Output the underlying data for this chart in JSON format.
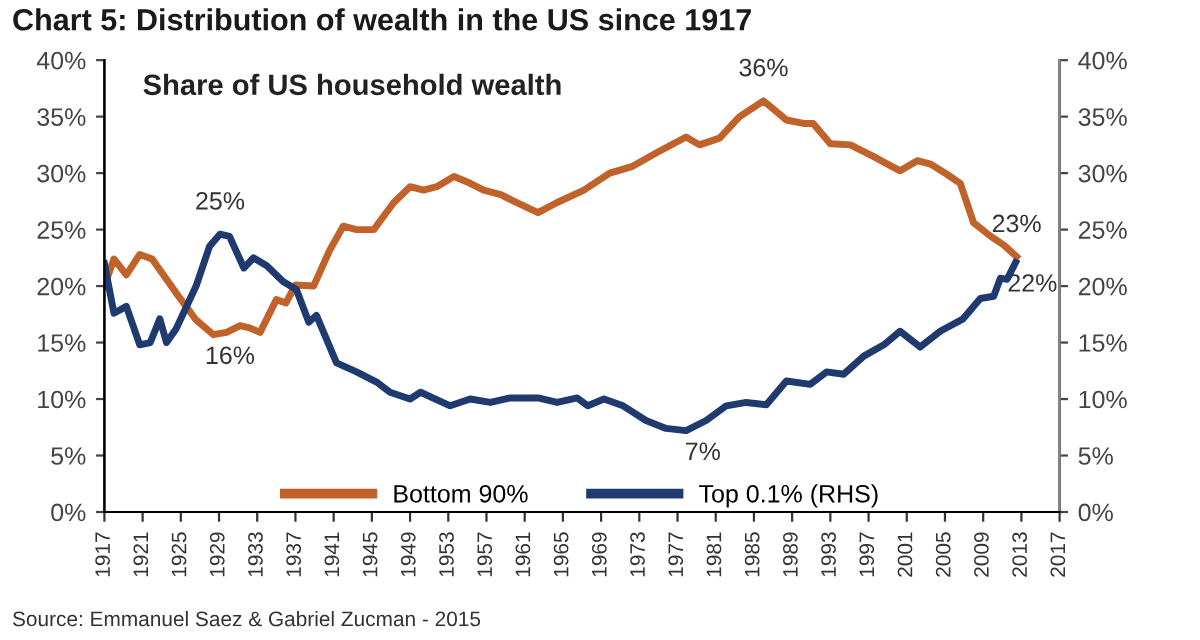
{
  "chart_data": {
    "type": "line",
    "title": "Chart 5: Distribution of wealth in the US since 1917",
    "subtitle": "Share of US household wealth",
    "series": [
      {
        "name": "Bottom 90%",
        "color": "#c0622a",
        "x": [
          1917,
          1918,
          1919.3,
          1920.7,
          1922,
          1923,
          1924.5,
          1926.6,
          1928.4,
          1929.8,
          1931.2,
          1932.2,
          1933.3,
          1935,
          1936,
          1937,
          1938.9,
          1940.6,
          1942,
          1943.4,
          1945.2,
          1947.3,
          1949,
          1950.4,
          1951.8,
          1953.6,
          1955.3,
          1956.7,
          1958.5,
          1959.9,
          1962.4,
          1964.4,
          1967.2,
          1969.9,
          1972.3,
          1974.8,
          1977.9,
          1979.3,
          1981.4,
          1983.5,
          1986,
          1988.4,
          1990.2,
          1991.2,
          1993,
          1995.1,
          1997.9,
          2000.3,
          2002.1,
          2003.5,
          2005.2,
          2006.6,
          2008,
          2009.8,
          2011.2,
          2012.5
        ],
        "values": [
          20,
          22.4,
          21,
          22.8,
          22.4,
          21.2,
          19.4,
          17,
          15.7,
          15.9,
          16.5,
          16.3,
          15.9,
          18.8,
          18.5,
          20.1,
          20,
          23.2,
          25.3,
          25,
          25,
          27.4,
          28.8,
          28.5,
          28.8,
          29.7,
          29.1,
          28.5,
          28.1,
          27.5,
          26.5,
          27.4,
          28.5,
          30,
          30.6,
          31.8,
          33.2,
          32.5,
          33.1,
          35,
          36.4,
          34.7,
          34.4,
          34.4,
          32.6,
          32.5,
          31.3,
          30.2,
          31.1,
          30.8,
          29.9,
          29.1,
          25.6,
          24.4,
          23.6,
          22.6
        ]
      },
      {
        "name": "Top 0.1% (RHS)",
        "color": "#1f3a6e",
        "axis": "y2",
        "x": [
          1917,
          1918,
          1919.3,
          1920.7,
          1921.8,
          1922.8,
          1923.5,
          1924.5,
          1926.6,
          1928,
          1929.1,
          1930.1,
          1931.6,
          1932.6,
          1934,
          1935.7,
          1937.1,
          1938.4,
          1939.2,
          1941.3,
          1943.4,
          1945.5,
          1946.9,
          1949,
          1950.1,
          1953.2,
          1955.3,
          1957.4,
          1959.5,
          1962.4,
          1964.4,
          1966.5,
          1967.6,
          1969.3,
          1971.3,
          1973.7,
          1975.8,
          1977.9,
          1980,
          1982.1,
          1984.2,
          1986.3,
          1988.4,
          1990.9,
          1992.6,
          1994.4,
          1996.5,
          1998.6,
          2000.3,
          2002.4,
          2004.5,
          2006.9,
          2008.7,
          2010.1,
          2010.8,
          2011.5,
          2012.4
        ],
        "values": [
          22,
          17.6,
          18.2,
          14.8,
          15,
          17.1,
          15,
          16.2,
          20,
          23.5,
          24.6,
          24.4,
          21.6,
          22.5,
          21.8,
          20.4,
          19.7,
          16.8,
          17.4,
          13.2,
          12.4,
          11.5,
          10.6,
          10,
          10.6,
          9.4,
          10,
          9.7,
          10.1,
          10.1,
          9.7,
          10.1,
          9.4,
          10,
          9.4,
          8.1,
          7.4,
          7.2,
          8.1,
          9.4,
          9.7,
          9.5,
          11.6,
          11.3,
          12.4,
          12.2,
          13.8,
          14.8,
          16,
          14.6,
          16,
          17.1,
          18.9,
          19.1,
          20.7,
          20.6,
          22.1
        ]
      }
    ],
    "xlim": [
      1917,
      2017
    ],
    "xticks": [
      1917,
      1921,
      1925,
      1929,
      1933,
      1937,
      1941,
      1945,
      1949,
      1953,
      1957,
      1961,
      1965,
      1969,
      1973,
      1977,
      1981,
      1985,
      1989,
      1993,
      1997,
      2001,
      2005,
      2009,
      2013,
      2017
    ],
    "ylim": [
      0,
      40
    ],
    "yticks": [
      {
        "value": 0,
        "label": "0%"
      },
      {
        "value": 5,
        "label": "5%"
      },
      {
        "value": 10,
        "label": "10%"
      },
      {
        "value": 15,
        "label": "15%"
      },
      {
        "value": 20,
        "label": "20%"
      },
      {
        "value": 25,
        "label": "25%"
      },
      {
        "value": 30,
        "label": "30%"
      },
      {
        "value": 35,
        "label": "35%"
      },
      {
        "value": 40,
        "label": "40%"
      }
    ],
    "y2lim": [
      0,
      40
    ],
    "y2ticks": [
      {
        "value": 0,
        "label": "0%"
      },
      {
        "value": 5,
        "label": "5%"
      },
      {
        "value": 10,
        "label": "10%"
      },
      {
        "value": 15,
        "label": "15%"
      },
      {
        "value": 20,
        "label": "20%"
      },
      {
        "value": 25,
        "label": "25%"
      },
      {
        "value": 30,
        "label": "30%"
      },
      {
        "value": 35,
        "label": "35%"
      },
      {
        "value": 40,
        "label": "40%"
      }
    ],
    "annotations": [
      {
        "text": "25%",
        "x": 1929.1,
        "y": 24.6
      },
      {
        "text": "16%",
        "x": 1928.4,
        "y": 15.7
      },
      {
        "text": "36%",
        "x": 1986,
        "y": 36.4
      },
      {
        "text": "7%",
        "x": 1977.9,
        "y": 7.2
      },
      {
        "text": "23%",
        "x": 2012.5,
        "y": 22.6
      },
      {
        "text": "22%",
        "x": 2012.4,
        "y": 22.1
      },
      "Source: Emmanuel Saez & Gabriel Zucman - 2015"
    ],
    "legend": "bottom",
    "grid": false,
    "marker": "none",
    "line_style": "solid"
  }
}
